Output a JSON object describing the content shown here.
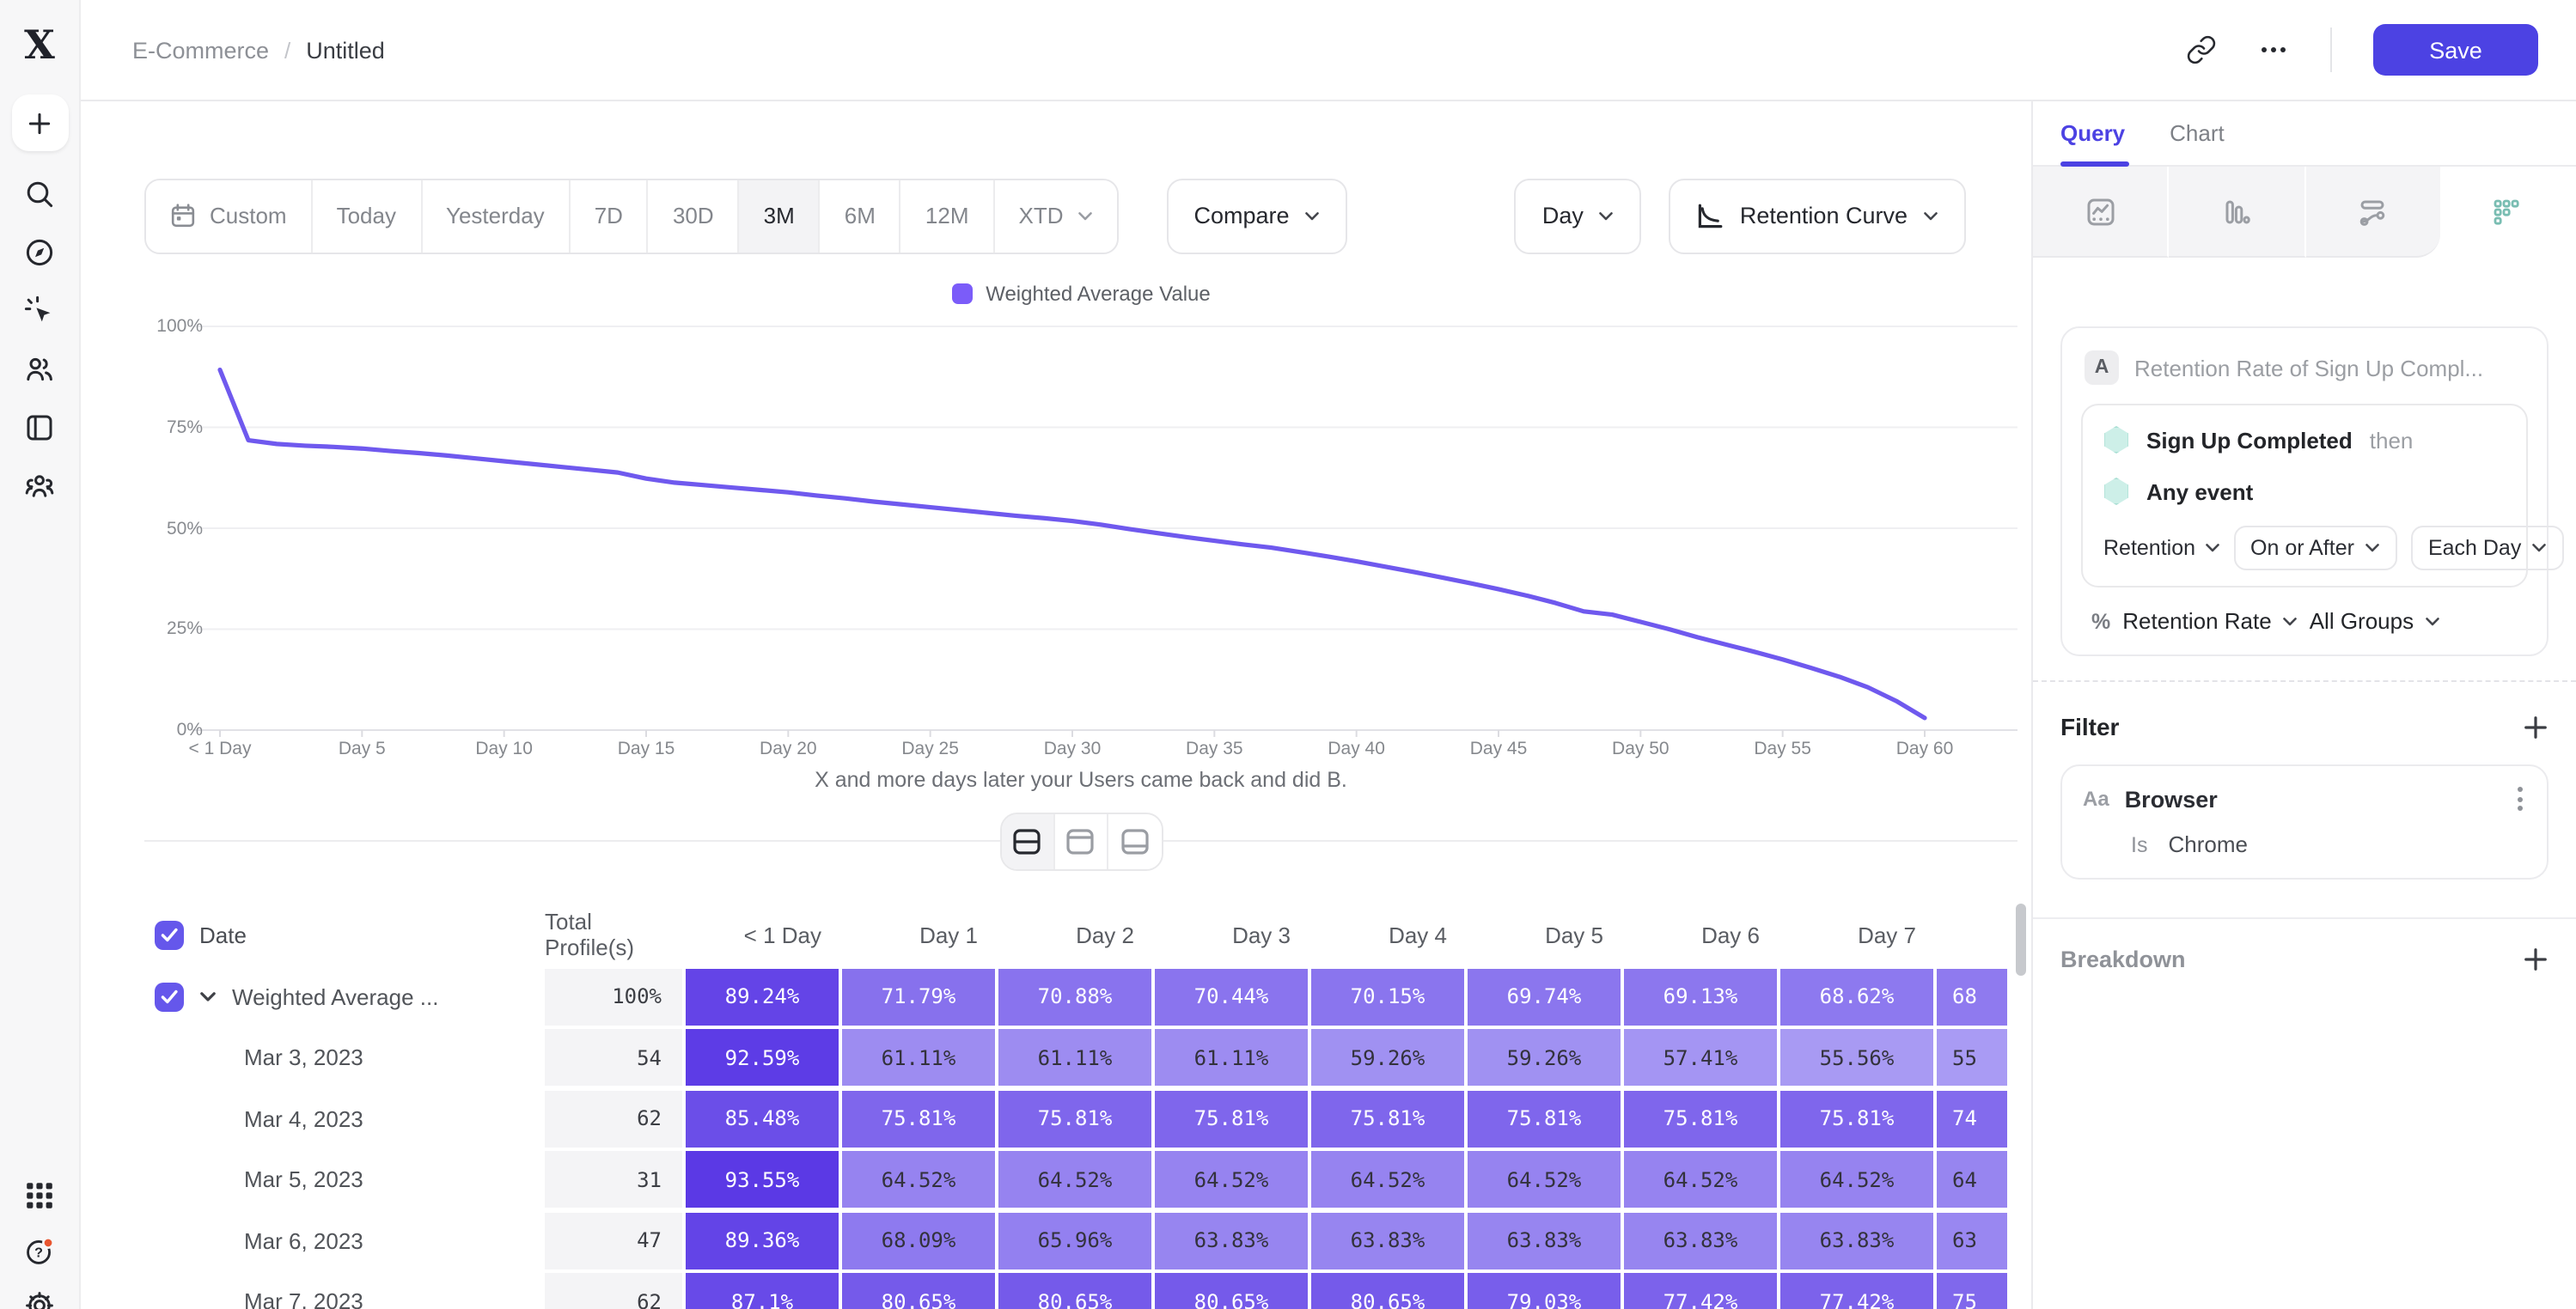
{
  "topbar": {
    "breadcrumb_parent": "E-Commerce",
    "breadcrumb_sep": "/",
    "breadcrumb_current": "Untitled",
    "save": "Save"
  },
  "toolbar": {
    "ranges": [
      "Custom",
      "Today",
      "Yesterday",
      "7D",
      "30D",
      "3M",
      "6M",
      "12M",
      "XTD"
    ],
    "selected": "3M",
    "compare": "Compare",
    "granularity": "Day",
    "chart_type": "Retention Curve"
  },
  "legend": {
    "label": "Weighted Average Value"
  },
  "chart_data": {
    "type": "line",
    "series": [
      {
        "name": "Weighted Average Value",
        "values": [
          89.24,
          71.79,
          70.88,
          70.44,
          70.15,
          69.74,
          69.13,
          68.62,
          68.0,
          67.3,
          66.6,
          65.9,
          65.2,
          64.5,
          63.8,
          62.3,
          61.3,
          60.7,
          60.1,
          59.5,
          58.9,
          58.1,
          57.4,
          56.6,
          55.9,
          55.2,
          54.5,
          53.8,
          53.1,
          52.5,
          51.8,
          50.9,
          49.8,
          48.8,
          47.8,
          46.9,
          46.0,
          45.2,
          44.1,
          43.0,
          41.8,
          40.5,
          39.2,
          37.8,
          36.4,
          34.9,
          33.3,
          31.5,
          29.4,
          28.6,
          26.8,
          25.0,
          23.0,
          21.2,
          19.4,
          17.5,
          15.4,
          13.2,
          10.6,
          7.2,
          3.0
        ]
      }
    ],
    "x": [
      0,
      1,
      2,
      3,
      4,
      5,
      6,
      7,
      8,
      9,
      10,
      11,
      12,
      13,
      14,
      15,
      16,
      17,
      18,
      19,
      20,
      21,
      22,
      23,
      24,
      25,
      26,
      27,
      28,
      29,
      30,
      31,
      32,
      33,
      34,
      35,
      36,
      37,
      38,
      39,
      40,
      41,
      42,
      43,
      44,
      45,
      46,
      47,
      48,
      49,
      50,
      51,
      52,
      53,
      54,
      55,
      56,
      57,
      58,
      59,
      60
    ],
    "xticks": [
      "< 1 Day",
      "Day 5",
      "Day 10",
      "Day 15",
      "Day 20",
      "Day 25",
      "Day 30",
      "Day 35",
      "Day 40",
      "Day 45",
      "Day 50",
      "Day 55",
      "Day 60"
    ],
    "ylabels": [
      "0%",
      "25%",
      "50%",
      "75%",
      "100%"
    ],
    "ylim": [
      0,
      100
    ],
    "xlabel": "X and more days later your Users came back and did B.",
    "grid": true,
    "legend_position": "top"
  },
  "table": {
    "columns": [
      "Date",
      "Total Profile(s)",
      "< 1 Day",
      "Day 1",
      "Day 2",
      "Day 3",
      "Day 4",
      "Day 5",
      "Day 6",
      "Day 7"
    ],
    "rows": [
      {
        "label": "Weighted Average ...",
        "checked": true,
        "expandable": true,
        "total": "100%",
        "cells": [
          "89.24%",
          "71.79%",
          "70.88%",
          "70.44%",
          "70.15%",
          "69.74%",
          "69.13%",
          "68.62%"
        ],
        "partial": "68"
      },
      {
        "label": "Mar 3, 2023",
        "total": "54",
        "cells": [
          "92.59%",
          "61.11%",
          "61.11%",
          "61.11%",
          "59.26%",
          "59.26%",
          "57.41%",
          "55.56%"
        ],
        "partial": "55"
      },
      {
        "label": "Mar 4, 2023",
        "total": "62",
        "cells": [
          "85.48%",
          "75.81%",
          "75.81%",
          "75.81%",
          "75.81%",
          "75.81%",
          "75.81%",
          "75.81%"
        ],
        "partial": "74"
      },
      {
        "label": "Mar 5, 2023",
        "total": "31",
        "cells": [
          "93.55%",
          "64.52%",
          "64.52%",
          "64.52%",
          "64.52%",
          "64.52%",
          "64.52%",
          "64.52%"
        ],
        "partial": "64"
      },
      {
        "label": "Mar 6, 2023",
        "total": "47",
        "cells": [
          "89.36%",
          "68.09%",
          "65.96%",
          "63.83%",
          "63.83%",
          "63.83%",
          "63.83%",
          "63.83%"
        ],
        "partial": "63"
      },
      {
        "label": "Mar 7, 2023",
        "total": "62",
        "cells": [
          "87.1%",
          "80.65%",
          "80.65%",
          "80.65%",
          "80.65%",
          "79.03%",
          "77.42%",
          "77.42%"
        ],
        "partial": "75"
      }
    ]
  },
  "panel": {
    "tabs": [
      "Query",
      "Chart"
    ],
    "active_tab": "Query",
    "query": {
      "step_label": "A",
      "title": "Retention Rate of Sign Up Compl...",
      "first_event": "Sign Up Completed",
      "connector": "then",
      "second_event": "Any event",
      "retention_dropdown": "Retention",
      "on_or_after_dropdown": "On or After",
      "each_day_dropdown": "Each Day",
      "measure_symbol": "%",
      "measure_dropdown": "Retention Rate",
      "groups_dropdown": "All Groups"
    },
    "filter": {
      "heading": "Filter",
      "field_type": "Aa",
      "field": "Browser",
      "operator": "Is",
      "value": "Chrome"
    },
    "breakdown": {
      "heading": "Breakdown"
    }
  },
  "colors": {
    "accent": "#4c42e3",
    "line": "#6f59ee",
    "legend_swatch": "#7b5cf9",
    "cell_dark": "#5a38e5",
    "cell_light": "#ab9ef4",
    "cell_text_dark": "#33323c",
    "hexagon_teal": "#cdefe8",
    "notification_red": "#e8552f"
  }
}
